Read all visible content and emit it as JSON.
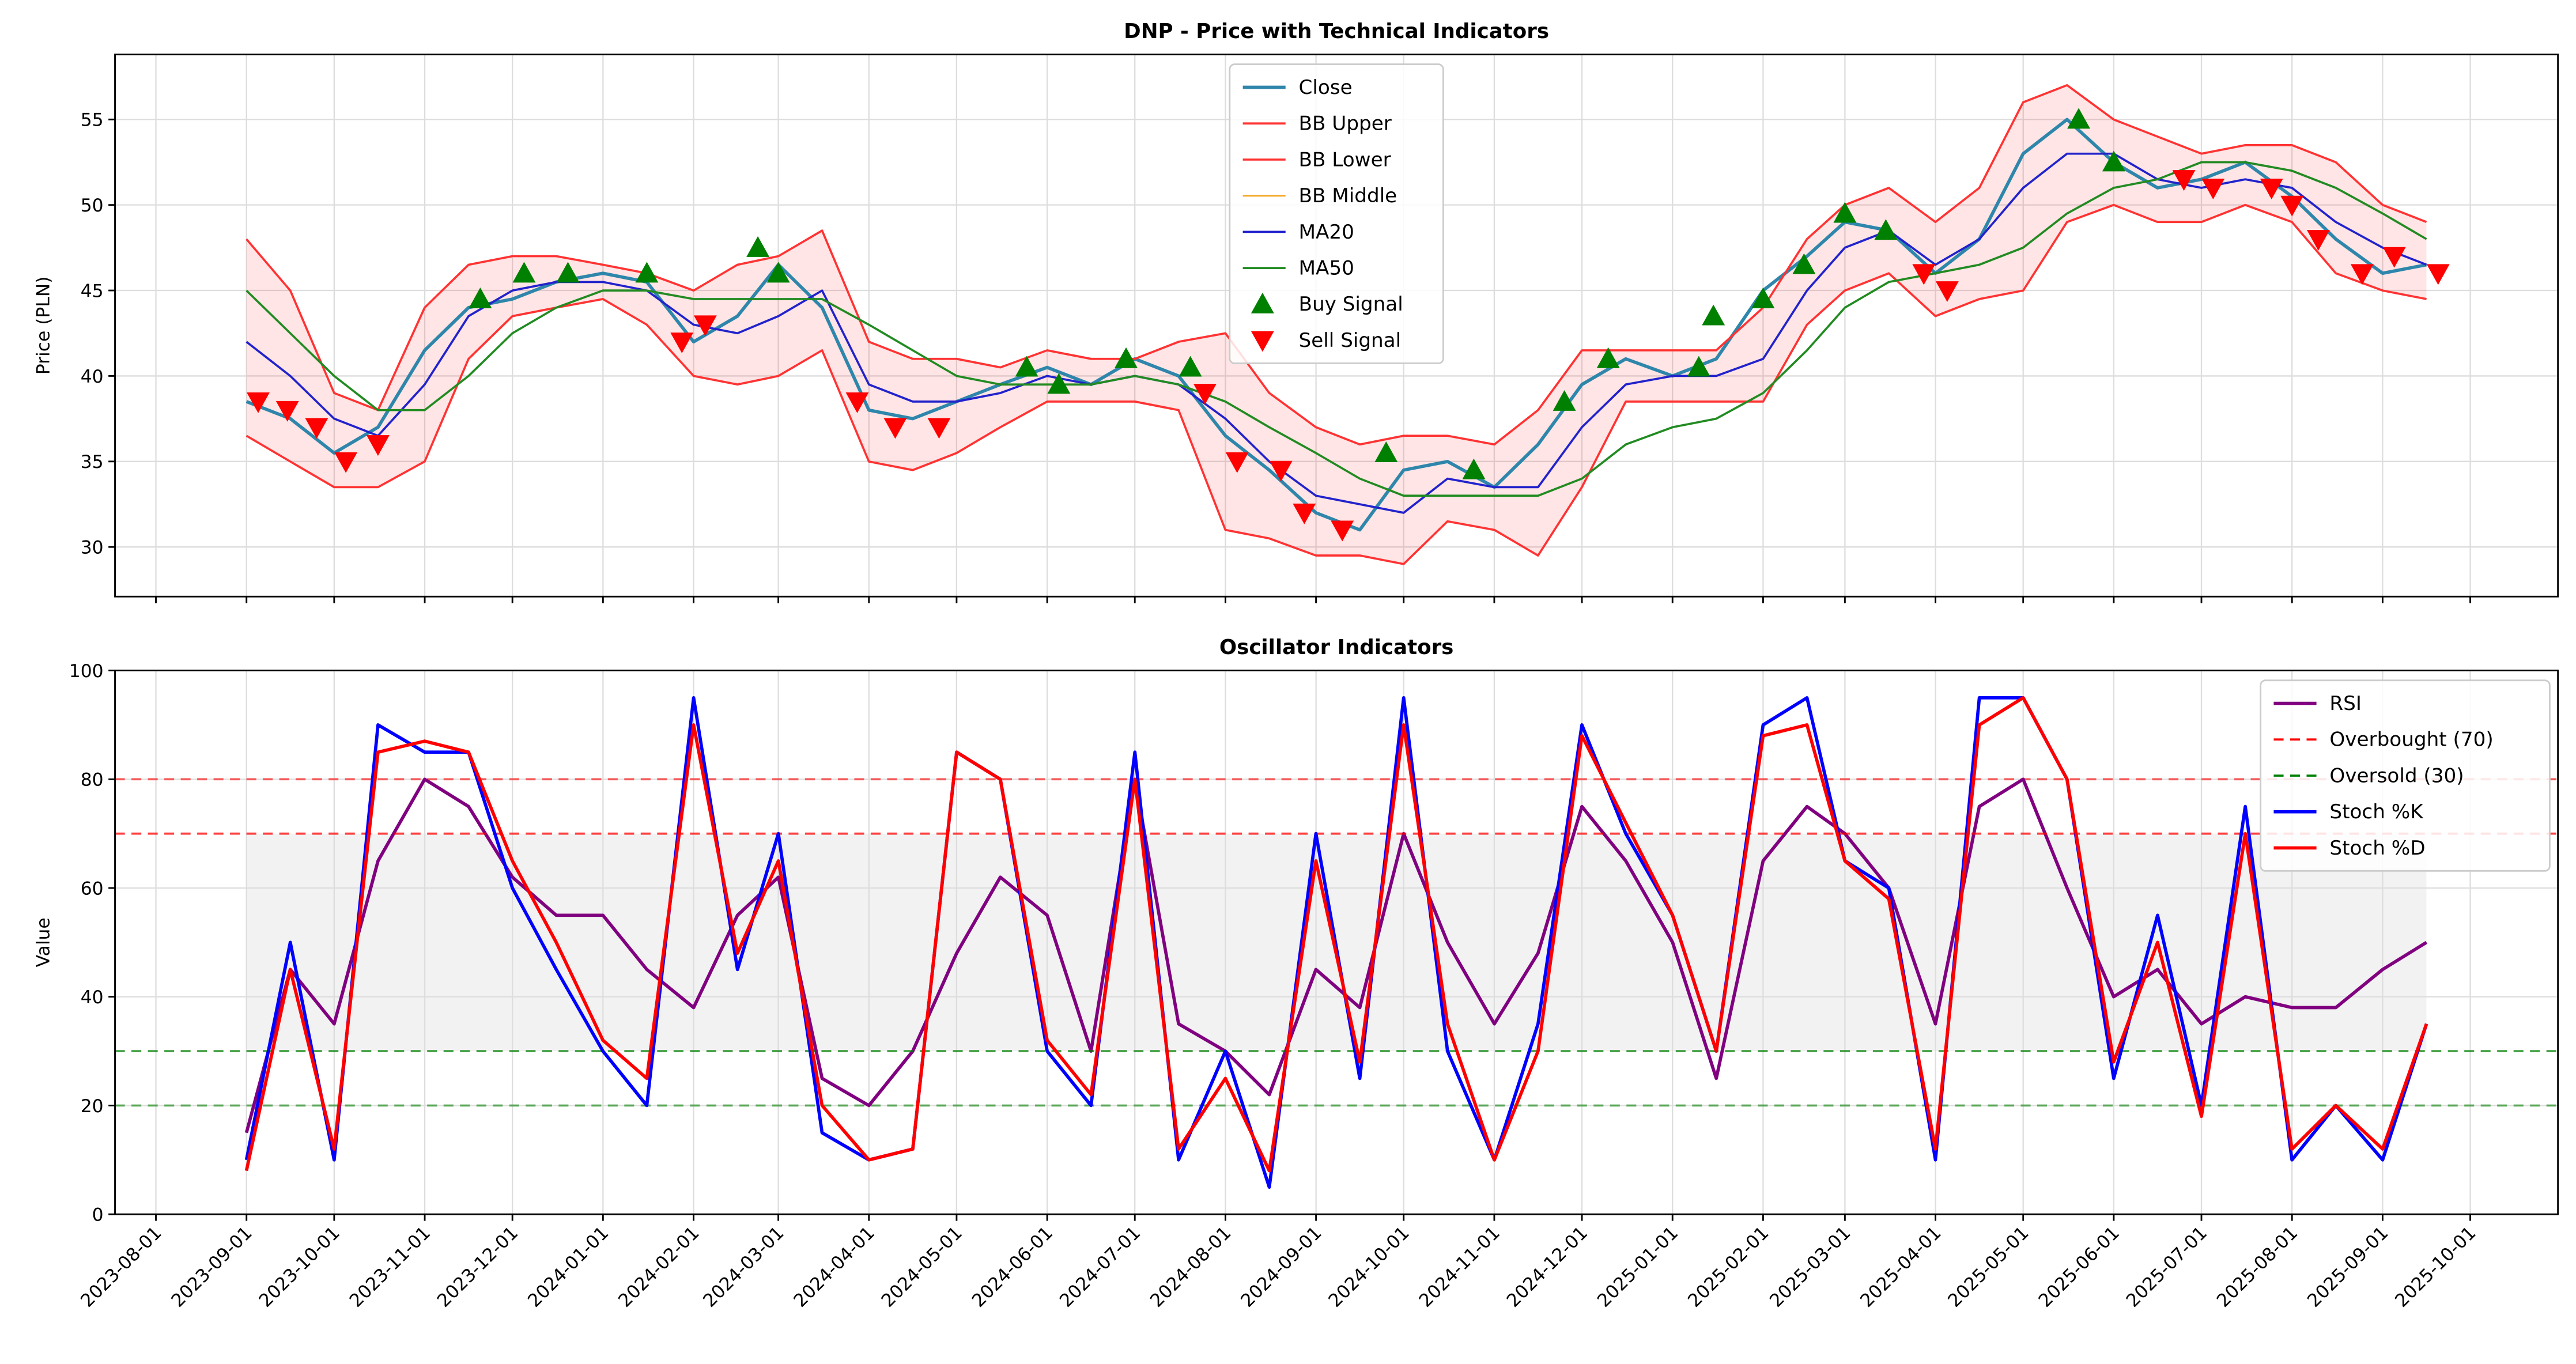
{
  "chart_data": [
    {
      "type": "line",
      "title": "DNP - Price with Technical Indicators",
      "ylabel": "Price (PLN)",
      "grid": true,
      "legend": "upper center",
      "xlim": [
        "2023-07-18",
        "2025-10-31"
      ],
      "xticks": [
        "2023-08-01",
        "2023-09-01",
        "2023-10-01",
        "2023-11-01",
        "2023-12-01",
        "2024-01-01",
        "2024-02-01",
        "2024-03-01",
        "2024-04-01",
        "2024-05-01",
        "2024-06-01",
        "2024-07-01",
        "2024-08-01",
        "2024-09-01",
        "2024-10-01",
        "2024-11-01",
        "2024-12-01",
        "2025-01-01",
        "2025-02-01",
        "2025-03-01",
        "2025-04-01",
        "2025-05-01",
        "2025-06-01",
        "2025-07-01",
        "2025-08-01",
        "2025-09-01",
        "2025-10-01"
      ],
      "ylim": [
        27.1,
        58.8
      ],
      "yticks": [
        30,
        35,
        40,
        45,
        50,
        55
      ],
      "x": [
        "2023-09-01",
        "2023-09-16",
        "2023-10-01",
        "2023-10-16",
        "2023-11-01",
        "2023-11-16",
        "2023-12-01",
        "2023-12-16",
        "2024-01-01",
        "2024-01-16",
        "2024-02-01",
        "2024-02-16",
        "2024-03-01",
        "2024-03-16",
        "2024-04-01",
        "2024-04-16",
        "2024-05-01",
        "2024-05-16",
        "2024-06-01",
        "2024-06-16",
        "2024-07-01",
        "2024-07-16",
        "2024-08-01",
        "2024-08-16",
        "2024-09-01",
        "2024-09-16",
        "2024-10-01",
        "2024-10-16",
        "2024-11-01",
        "2024-11-16",
        "2024-12-01",
        "2024-12-16",
        "2025-01-01",
        "2025-01-16",
        "2025-02-01",
        "2025-02-16",
        "2025-03-01",
        "2025-03-16",
        "2025-04-01",
        "2025-04-16",
        "2025-05-01",
        "2025-05-16",
        "2025-06-01",
        "2025-06-16",
        "2025-07-01",
        "2025-07-16",
        "2025-08-01",
        "2025-08-16",
        "2025-09-01",
        "2025-09-16"
      ],
      "series": [
        {
          "name": "Close",
          "color": "#2e86ab",
          "width": 2,
          "values": [
            38.5,
            37.5,
            35.5,
            37,
            41.5,
            44,
            44.5,
            45.5,
            46,
            45.5,
            42,
            43.5,
            46.5,
            44,
            38,
            37.5,
            38.5,
            39.5,
            40.5,
            39.5,
            41,
            40,
            36.5,
            34.5,
            32,
            31,
            34.5,
            35,
            33.5,
            36,
            39.5,
            41,
            40,
            41,
            45,
            47,
            49,
            48.5,
            46,
            48,
            53,
            55,
            52.5,
            51,
            51.5,
            52.5,
            50.5,
            48,
            46,
            46.5
          ]
        },
        {
          "name": "BB Upper",
          "color": "#ff3333",
          "width": 1.3,
          "fill_to_next": "rgba(255,0,0,0.1)",
          "values": [
            48,
            45,
            39,
            38,
            44,
            46.5,
            47,
            47,
            46.5,
            46,
            45,
            46.5,
            47,
            48.5,
            42,
            41,
            41,
            40.5,
            41.5,
            41,
            41,
            42,
            42.5,
            39,
            37,
            36,
            36.5,
            36.5,
            36,
            38,
            41.5,
            41.5,
            41.5,
            41.5,
            44,
            48,
            50,
            51,
            49,
            51,
            56,
            57,
            55,
            54,
            53,
            53.5,
            53.5,
            52.5,
            50,
            49
          ]
        },
        {
          "name": "BB Lower",
          "color": "#ff3333",
          "width": 1.3,
          "values": [
            36.5,
            35,
            33.5,
            33.5,
            35,
            41,
            43.5,
            44,
            44.5,
            43,
            40,
            39.5,
            40,
            41.5,
            35,
            34.5,
            35.5,
            37,
            38.5,
            38.5,
            38.5,
            38,
            31,
            30.5,
            29.5,
            29.5,
            29,
            31.5,
            31,
            29.5,
            33.5,
            38.5,
            38.5,
            38.5,
            38.5,
            43,
            45,
            46,
            43.5,
            44.5,
            45,
            49,
            50,
            49,
            49,
            50,
            49,
            46,
            45,
            44.5
          ]
        },
        {
          "name": "BB Middle",
          "color": "#f5a623",
          "width": 1,
          "values": [
            42,
            40,
            37.5,
            36.5,
            39.5,
            43.5,
            45,
            45.5,
            45.5,
            45,
            43,
            42.5,
            43.5,
            45,
            39.5,
            38.5,
            38.5,
            39,
            40,
            39.5,
            40,
            39.5,
            37.5,
            35,
            33,
            32.5,
            32,
            34,
            33.5,
            33.5,
            37,
            39.5,
            40,
            40,
            41,
            45,
            47.5,
            48.5,
            46.5,
            48,
            51,
            53,
            53,
            51.5,
            51,
            51.5,
            51,
            49,
            47.5,
            46.5
          ]
        },
        {
          "name": "MA20",
          "color": "#2222cc",
          "width": 1.3,
          "values": [
            42,
            40,
            37.5,
            36.5,
            39.5,
            43.5,
            45,
            45.5,
            45.5,
            45,
            43,
            42.5,
            43.5,
            45,
            39.5,
            38.5,
            38.5,
            39,
            40,
            39.5,
            40,
            39.5,
            37.5,
            35,
            33,
            32.5,
            32,
            34,
            33.5,
            33.5,
            37,
            39.5,
            40,
            40,
            41,
            45,
            47.5,
            48.5,
            46.5,
            48,
            51,
            53,
            53,
            51.5,
            51,
            51.5,
            51,
            49,
            47.5,
            46.5
          ]
        },
        {
          "name": "MA50",
          "color": "#228b22",
          "width": 1.3,
          "values": [
            45,
            42.5,
            40,
            38,
            38,
            40,
            42.5,
            44,
            45,
            45,
            44.5,
            44.5,
            44.5,
            44.5,
            43,
            41.5,
            40,
            39.5,
            39.5,
            39.5,
            40,
            39.5,
            38.5,
            37,
            35.5,
            34,
            33,
            33,
            33,
            33,
            34,
            36,
            37,
            37.5,
            39,
            41.5,
            44,
            45.5,
            46,
            46.5,
            47.5,
            49.5,
            51,
            51.5,
            52.5,
            52.5,
            52,
            51,
            49.5,
            48
          ]
        },
        {
          "name": "Buy Signal",
          "type": "scatter",
          "marker": "^",
          "color": "#008000",
          "x": [
            "2023-11-20",
            "2023-12-05",
            "2023-12-20",
            "2024-01-16",
            "2024-02-23",
            "2024-03-01",
            "2024-05-25",
            "2024-06-05",
            "2024-06-28",
            "2024-07-20",
            "2024-09-25",
            "2024-10-25",
            "2024-11-25",
            "2024-12-10",
            "2025-01-10",
            "2025-01-15",
            "2025-02-01",
            "2025-02-15",
            "2025-03-01",
            "2025-03-15",
            "2025-05-20",
            "2025-06-01"
          ],
          "values": [
            44.5,
            46,
            46,
            46,
            47.5,
            46,
            40.5,
            39.5,
            41,
            40.5,
            35.5,
            34.5,
            38.5,
            41,
            40.5,
            43.5,
            44.5,
            46.5,
            49.5,
            48.5,
            55,
            52.5
          ]
        },
        {
          "name": "Sell Signal",
          "type": "scatter",
          "marker": "v",
          "color": "#ff0000",
          "x": [
            "2023-09-05",
            "2023-09-15",
            "2023-09-25",
            "2023-10-05",
            "2023-10-16",
            "2024-01-28",
            "2024-02-05",
            "2024-03-28",
            "2024-04-10",
            "2024-04-25",
            "2024-07-25",
            "2024-08-05",
            "2024-08-20",
            "2024-08-28",
            "2024-09-10",
            "2025-03-28",
            "2025-04-05",
            "2025-06-25",
            "2025-07-05",
            "2025-07-25",
            "2025-08-01",
            "2025-08-10",
            "2025-08-25",
            "2025-09-05",
            "2025-09-20"
          ],
          "values": [
            38.5,
            38,
            37,
            35,
            36,
            42,
            43,
            38.5,
            37,
            37,
            39,
            35,
            34.5,
            32,
            31,
            46,
            45,
            51.5,
            51,
            51,
            50,
            48,
            46,
            47,
            46
          ]
        }
      ]
    },
    {
      "type": "line",
      "title": "Oscillator Indicators",
      "ylabel": "Value",
      "grid": true,
      "legend": "upper right",
      "xlim": [
        "2023-07-18",
        "2025-10-31"
      ],
      "xticks": [
        "2023-08-01",
        "2023-09-01",
        "2023-10-01",
        "2023-11-01",
        "2023-12-01",
        "2024-01-01",
        "2024-02-01",
        "2024-03-01",
        "2024-04-01",
        "2024-05-01",
        "2024-06-01",
        "2024-07-01",
        "2024-08-01",
        "2024-09-01",
        "2024-10-01",
        "2024-11-01",
        "2024-12-01",
        "2025-01-01",
        "2025-02-01",
        "2025-03-01",
        "2025-04-01",
        "2025-05-01",
        "2025-06-01",
        "2025-07-01",
        "2025-08-01",
        "2025-09-01",
        "2025-10-01"
      ],
      "ylim": [
        0,
        100
      ],
      "yticks": [
        0,
        20,
        40,
        60,
        80,
        100
      ],
      "shade": {
        "range": [
          30,
          70
        ],
        "color": "rgba(128,128,128,0.1)"
      },
      "reference_lines": [
        {
          "value": 80,
          "color": "#ff0000"
        },
        {
          "value": 20,
          "color": "#008000"
        }
      ],
      "x": [
        "2023-09-01",
        "2023-09-16",
        "2023-10-01",
        "2023-10-16",
        "2023-11-01",
        "2023-11-16",
        "2023-12-01",
        "2023-12-16",
        "2024-01-01",
        "2024-01-16",
        "2024-02-01",
        "2024-02-16",
        "2024-03-01",
        "2024-03-16",
        "2024-04-01",
        "2024-04-16",
        "2024-05-01",
        "2024-05-16",
        "2024-06-01",
        "2024-06-16",
        "2024-07-01",
        "2024-07-16",
        "2024-08-01",
        "2024-08-16",
        "2024-09-01",
        "2024-09-16",
        "2024-10-01",
        "2024-10-16",
        "2024-11-01",
        "2024-11-16",
        "2024-12-01",
        "2024-12-16",
        "2025-01-01",
        "2025-01-16",
        "2025-02-01",
        "2025-02-16",
        "2025-03-01",
        "2025-03-16",
        "2025-04-01",
        "2025-04-16",
        "2025-05-01",
        "2025-05-16",
        "2025-06-01",
        "2025-06-16",
        "2025-07-01",
        "2025-07-16",
        "2025-08-01",
        "2025-08-16",
        "2025-09-01",
        "2025-09-16"
      ],
      "series": [
        {
          "name": "RSI",
          "color": "#800080",
          "width": 2,
          "values": [
            15,
            45,
            35,
            65,
            80,
            75,
            62,
            55,
            55,
            45,
            38,
            55,
            62,
            25,
            20,
            30,
            48,
            62,
            55,
            30,
            80,
            35,
            30,
            22,
            45,
            38,
            70,
            50,
            35,
            48,
            75,
            65,
            50,
            25,
            65,
            75,
            70,
            60,
            35,
            75,
            80,
            60,
            40,
            45,
            35,
            40,
            38,
            38,
            45,
            50
          ]
        },
        {
          "name": "Overbought (70)",
          "type": "hline",
          "value": 70,
          "color": "#ff0000"
        },
        {
          "name": "Oversold (30)",
          "type": "hline",
          "value": 30,
          "color": "#008000"
        },
        {
          "name": "Stoch %K",
          "color": "#0000ff",
          "width": 2,
          "values": [
            10,
            50,
            10,
            90,
            85,
            85,
            60,
            45,
            30,
            20,
            95,
            45,
            70,
            15,
            10,
            12,
            85,
            80,
            30,
            20,
            85,
            10,
            30,
            5,
            70,
            25,
            95,
            30,
            10,
            35,
            90,
            70,
            55,
            30,
            90,
            95,
            65,
            60,
            10,
            95,
            95,
            80,
            25,
            55,
            20,
            75,
            10,
            20,
            10,
            35
          ]
        },
        {
          "name": "Stoch %D",
          "color": "#ff0000",
          "width": 2,
          "values": [
            8,
            45,
            12,
            85,
            87,
            85,
            65,
            50,
            32,
            25,
            90,
            48,
            65,
            20,
            10,
            12,
            85,
            80,
            32,
            22,
            80,
            12,
            25,
            8,
            65,
            28,
            90,
            35,
            10,
            30,
            88,
            72,
            55,
            30,
            88,
            90,
            65,
            58,
            12,
            90,
            95,
            80,
            28,
            50,
            18,
            70,
            12,
            20,
            12,
            35
          ]
        }
      ]
    }
  ]
}
